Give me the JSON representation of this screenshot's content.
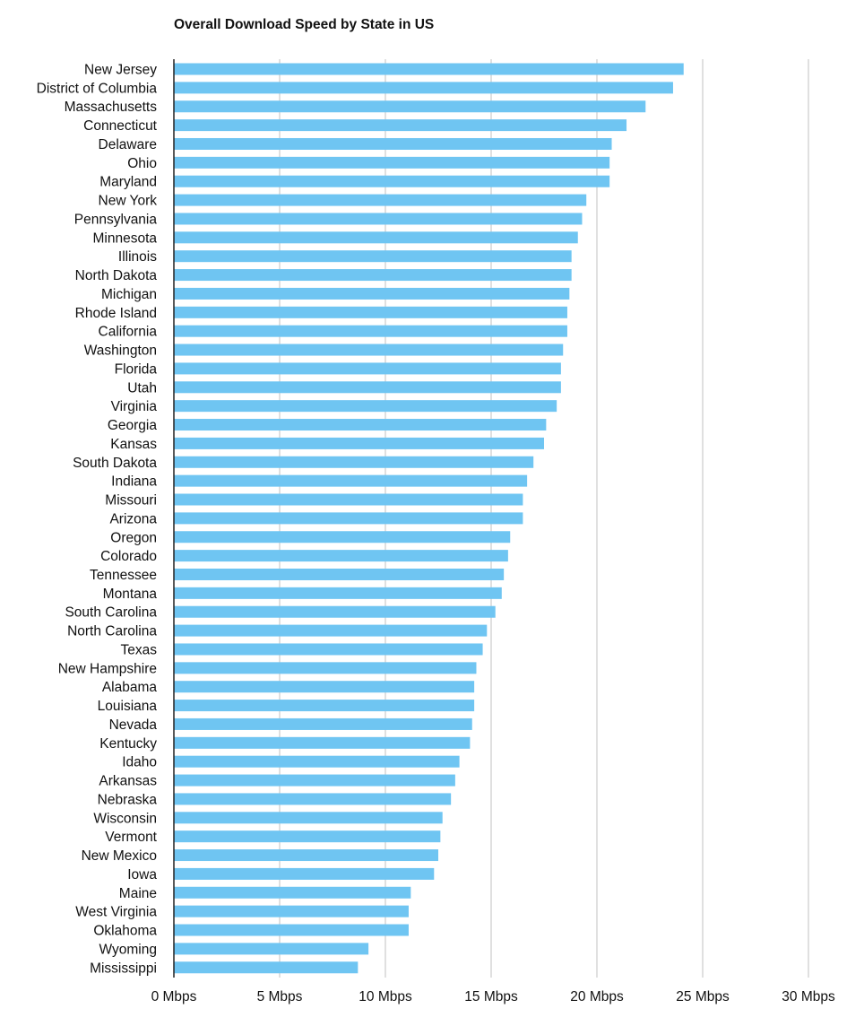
{
  "chart_data": {
    "type": "bar",
    "orientation": "horizontal",
    "title": "Overall Download Speed by State in US",
    "xlabel": "",
    "ylabel": "",
    "xlim": [
      0,
      30
    ],
    "x_ticks": [
      0,
      5,
      10,
      15,
      20,
      25,
      30
    ],
    "x_tick_labels": [
      "0 Mbps",
      "5 Mbps",
      "10 Mbps",
      "15 Mbps",
      "20 Mbps",
      "25 Mbps",
      "30 Mbps"
    ],
    "grid": "vertical",
    "legend": "none",
    "bar_color": "#6fc5f2",
    "categories": [
      "New Jersey",
      "District of Columbia",
      "Massachusetts",
      "Connecticut",
      "Delaware",
      "Ohio",
      "Maryland",
      "New York",
      "Pennsylvania",
      "Minnesota",
      "Illinois",
      "North Dakota",
      "Michigan",
      "Rhode Island",
      "California",
      "Washington",
      "Florida",
      "Utah",
      "Virginia",
      "Georgia",
      "Kansas",
      "South Dakota",
      "Indiana",
      "Missouri",
      "Arizona",
      "Oregon",
      "Colorado",
      "Tennessee",
      "Montana",
      "South Carolina",
      "North Carolina",
      "Texas",
      "New Hampshire",
      "Alabama",
      "Louisiana",
      "Nevada",
      "Kentucky",
      "Idaho",
      "Arkansas",
      "Nebraska",
      "Wisconsin",
      "Vermont",
      "New Mexico",
      "Iowa",
      "Maine",
      "West Virginia",
      "Oklahoma",
      "Wyoming",
      "Mississippi"
    ],
    "values": [
      24.1,
      23.6,
      22.3,
      21.4,
      20.7,
      20.6,
      20.6,
      19.5,
      19.3,
      19.1,
      18.8,
      18.8,
      18.7,
      18.6,
      18.6,
      18.4,
      18.3,
      18.3,
      18.1,
      17.6,
      17.5,
      17.0,
      16.7,
      16.5,
      16.5,
      15.9,
      15.8,
      15.6,
      15.5,
      15.2,
      14.8,
      14.6,
      14.3,
      14.2,
      14.2,
      14.1,
      14.0,
      13.5,
      13.3,
      13.1,
      12.7,
      12.6,
      12.5,
      12.3,
      11.2,
      11.1,
      11.1,
      9.2,
      8.7
    ]
  }
}
